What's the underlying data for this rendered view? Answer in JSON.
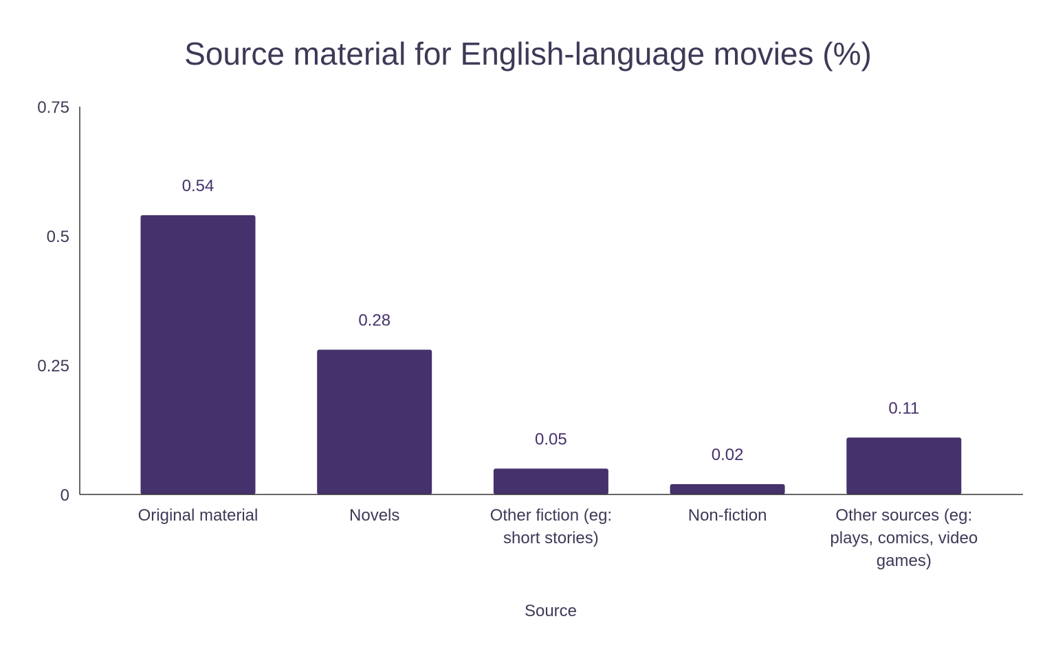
{
  "chart_data": {
    "type": "bar",
    "title": "Source material for English-language movies (%)",
    "xlabel": "Source",
    "ylabel": "",
    "categories": [
      "Original material",
      "Novels",
      "Other fiction (eg: short stories)",
      "Non-fiction",
      "Other sources (eg: plays, comics, video games)"
    ],
    "category_lines": [
      [
        "Original material"
      ],
      [
        "Novels"
      ],
      [
        "Other fiction (eg:",
        "short stories)"
      ],
      [
        "Non-fiction"
      ],
      [
        "Other sources (eg:",
        "plays, comics, video",
        "games)"
      ]
    ],
    "values": [
      0.54,
      0.28,
      0.05,
      0.02,
      0.11
    ],
    "data_labels": [
      "0.54",
      "0.28",
      "0.05",
      "0.02",
      "0.11"
    ],
    "ylim": [
      0,
      0.75
    ],
    "yticks": [
      0,
      0.25,
      0.5,
      0.75
    ],
    "ytick_labels": [
      "0",
      "0.25",
      "0.5",
      "0.75"
    ],
    "grid": false,
    "legend": "none",
    "colors": {
      "bar": "#45316b",
      "text": "#3d3a57",
      "data_label": "#45316b"
    }
  }
}
